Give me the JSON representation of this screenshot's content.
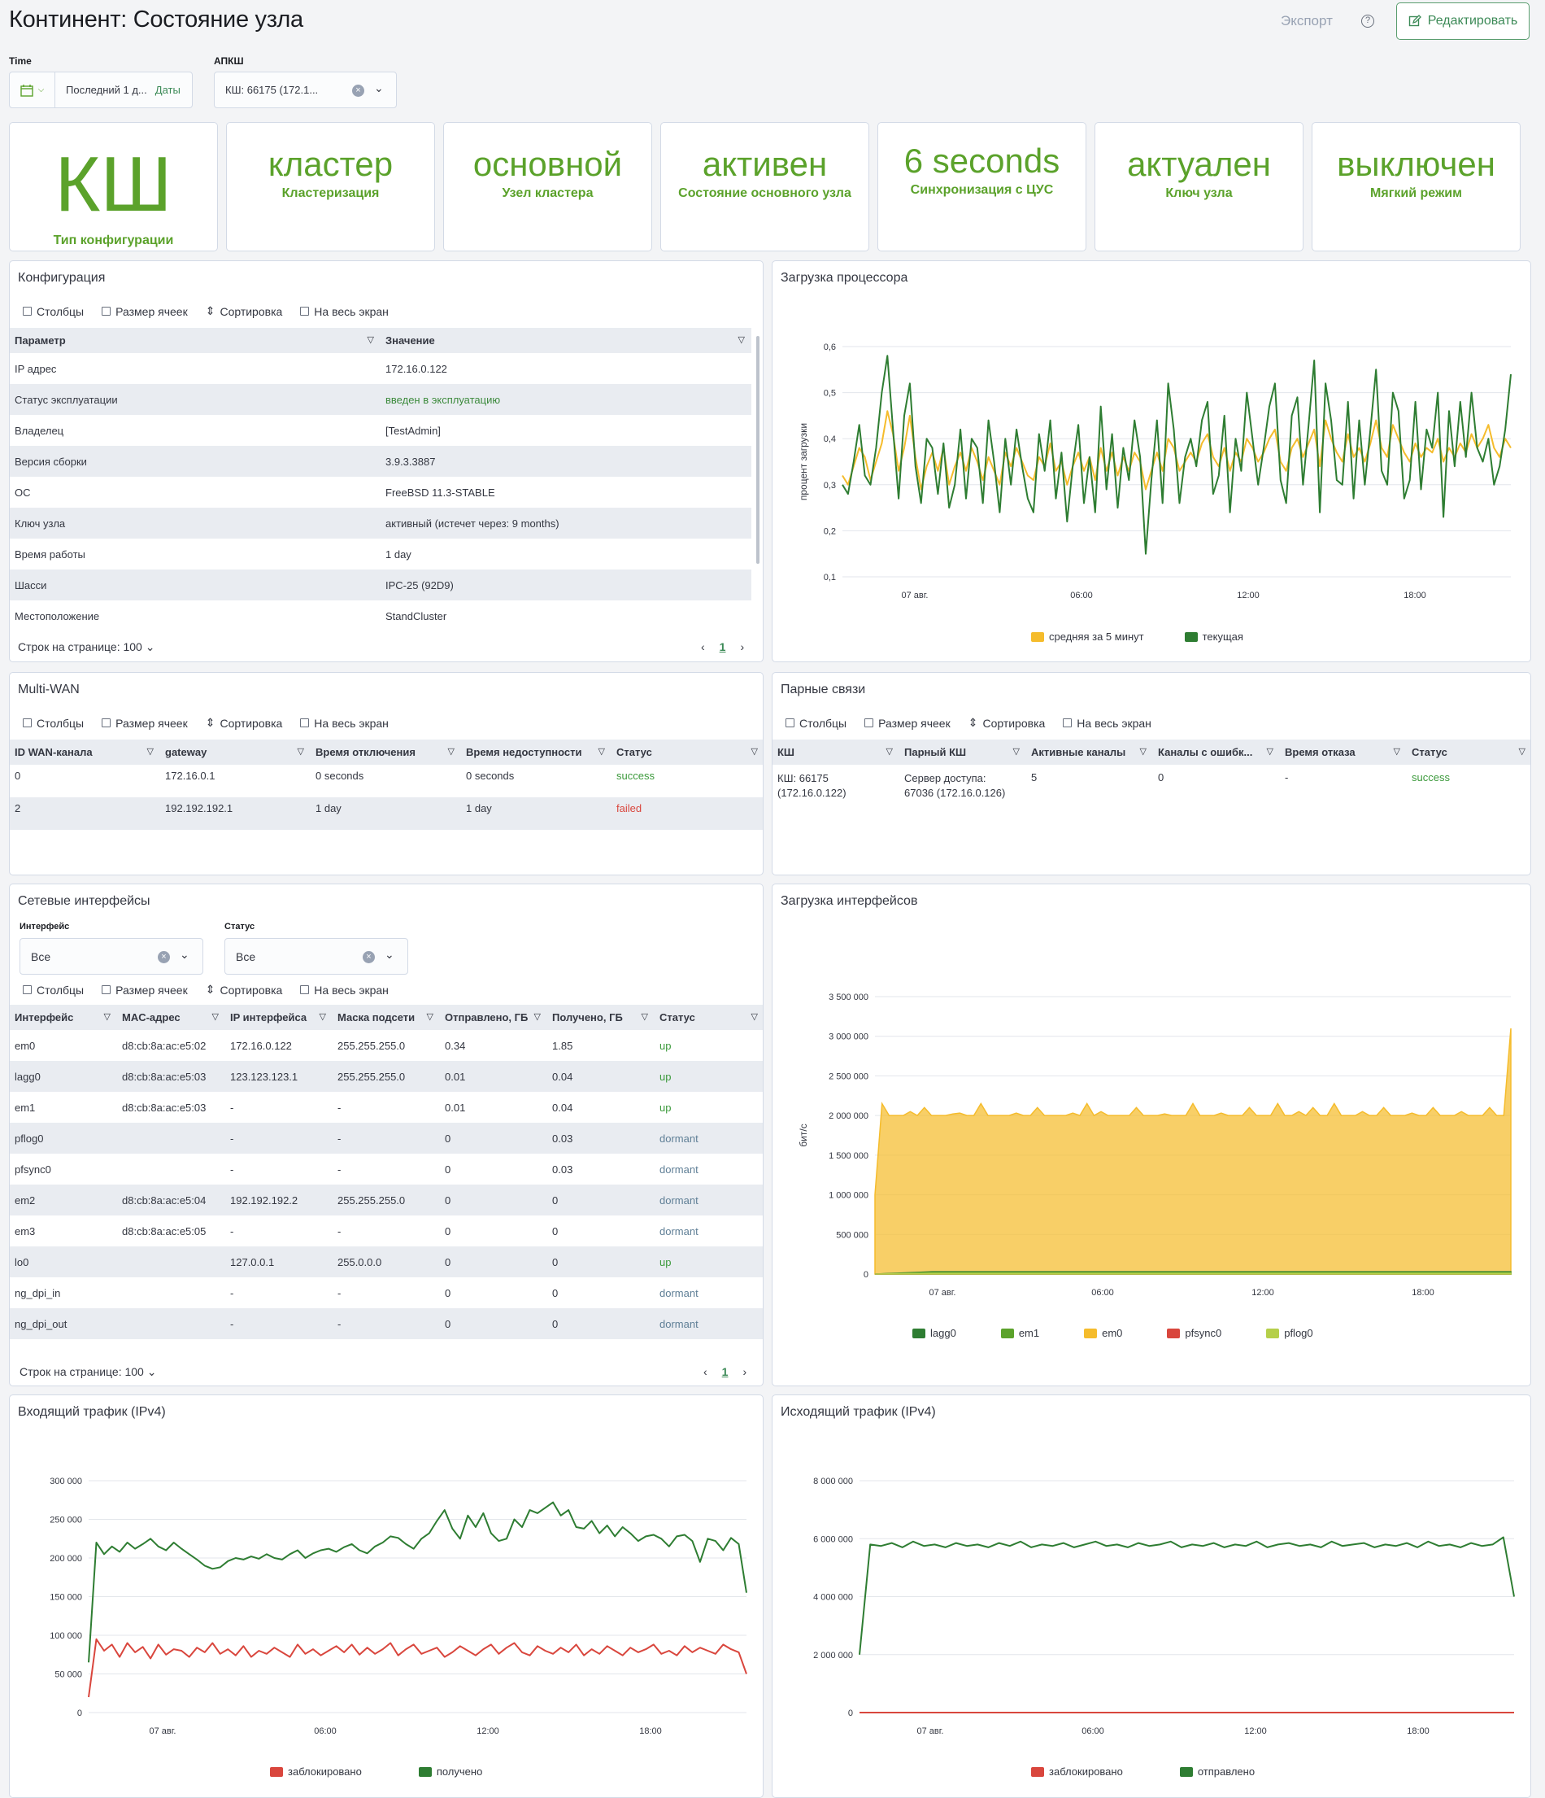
{
  "header": {
    "title": "Континент: Состояние узла",
    "export": "Экспорт",
    "help": "?",
    "edit": "Редактировать"
  },
  "filters": {
    "time_label": "Time",
    "time_value": "Последний 1 д...",
    "time_link": "Даты",
    "apksh_label": "АПКШ",
    "apksh_value": "КШ: 66175 (172.1..."
  },
  "metrics": [
    {
      "value": "КШ",
      "label": "Тип конфигурации"
    },
    {
      "value": "кластер",
      "label": "Кластеризация"
    },
    {
      "value": "основной",
      "label": "Узел кластера"
    },
    {
      "value": "активен",
      "label": "Состояние основного узла"
    },
    {
      "value": "6 seconds",
      "label": "Синхронизация с ЦУС"
    },
    {
      "value": "актуален",
      "label": "Ключ узла"
    },
    {
      "value": "выключен",
      "label": "Мягкий режим"
    }
  ],
  "toolbar": {
    "columns": "Столбцы",
    "cellsize": "Размер ячеек",
    "sort": "Сортировка",
    "fullscreen": "На весь экран"
  },
  "config": {
    "title": "Конфигурация",
    "col1": "Параметр",
    "col2": "Значение",
    "rows": [
      [
        "IP адрес",
        "172.16.0.122"
      ],
      [
        "Статус эксплуатации",
        "введен в эксплуатацию"
      ],
      [
        "Владелец",
        "[TestAdmin]"
      ],
      [
        "Версия сборки",
        "3.9.3.3887"
      ],
      [
        "ОС",
        "FreeBSD 11.3-STABLE"
      ],
      [
        "Ключ узла",
        "активный (истечет через: 9 months)"
      ],
      [
        "Время работы",
        "1 day"
      ],
      [
        "Шасси",
        "IPC-25 (92D9)"
      ],
      [
        "Местоположение",
        "StandCluster"
      ]
    ],
    "rows_per_page": "Строк на странице: 100",
    "page": "1"
  },
  "cpu": {
    "title": "Загрузка процессора",
    "ylabel": "процент загрузки",
    "legend": [
      "средняя за 5 минут",
      "текущая"
    ],
    "colors": [
      "#f5bc2c",
      "#2e7d32"
    ]
  },
  "multiwan": {
    "title": "Multi-WAN",
    "cols": [
      "ID WAN-канала",
      "gateway",
      "Время отключения",
      "Время недоступности",
      "Статус"
    ],
    "rows": [
      [
        "0",
        "172.16.0.1",
        "0 seconds",
        "0 seconds",
        "success"
      ],
      [
        "2",
        "192.192.192.1",
        "1 day",
        "1 day",
        "failed"
      ]
    ]
  },
  "pairs": {
    "title": "Парные связи",
    "cols": [
      "КШ",
      "Парный КШ",
      "Активные каналы",
      "Каналы с ошибк...",
      "Время отказа",
      "Статус"
    ],
    "row": {
      "ksh1": "КШ: 66175",
      "ksh2": "(172.16.0.122)",
      "pair1": "Сервер доступа:",
      "pair2": "67036 (172.16.0.126)",
      "active": "5",
      "errors": "0",
      "fail": "-",
      "status": "success"
    }
  },
  "netif": {
    "title": "Сетевые интерфейсы",
    "f_iface_label": "Интерфейс",
    "f_iface": "Все",
    "f_status_label": "Статус",
    "f_status": "Все",
    "cols": [
      "Интерфейс",
      "MAC-адрес",
      "IP интерфейса",
      "Маска подсети",
      "Отправлено, ГБ",
      "Получено, ГБ",
      "Статус"
    ],
    "rows": [
      [
        "em0",
        "d8:cb:8a:ac:e5:02",
        "172.16.0.122",
        "255.255.255.0",
        "0.34",
        "1.85",
        "up"
      ],
      [
        "lagg0",
        "d8:cb:8a:ac:e5:03",
        "123.123.123.1",
        "255.255.255.0",
        "0.01",
        "0.04",
        "up"
      ],
      [
        "em1",
        "d8:cb:8a:ac:e5:03",
        "-",
        "-",
        "0.01",
        "0.04",
        "up"
      ],
      [
        "pflog0",
        "",
        "-",
        "-",
        "0",
        "0.03",
        "dormant"
      ],
      [
        "pfsync0",
        "",
        "-",
        "-",
        "0",
        "0.03",
        "dormant"
      ],
      [
        "em2",
        "d8:cb:8a:ac:e5:04",
        "192.192.192.2",
        "255.255.255.0",
        "0",
        "0",
        "dormant"
      ],
      [
        "em3",
        "d8:cb:8a:ac:e5:05",
        "-",
        "-",
        "0",
        "0",
        "dormant"
      ],
      [
        "lo0",
        "",
        "127.0.0.1",
        "255.0.0.0",
        "0",
        "0",
        "up"
      ],
      [
        "ng_dpi_in",
        "",
        "-",
        "-",
        "0",
        "0",
        "dormant"
      ],
      [
        "ng_dpi_out",
        "",
        "-",
        "-",
        "0",
        "0",
        "dormant"
      ]
    ],
    "rows_per_page": "Строк на странице: 100",
    "page": "1"
  },
  "ifload": {
    "title": "Загрузка интерфейсов",
    "ylabel": "бит/с",
    "legend": [
      "lagg0",
      "em1",
      "em0",
      "pfsync0",
      "pflog0"
    ],
    "colors": [
      "#2e7d32",
      "#5ba22b",
      "#f5bc2c",
      "#d9463d",
      "#b5cf4a"
    ]
  },
  "inbound": {
    "title": "Входящий трафик (IPv4)",
    "legend": [
      "заблокировано",
      "получено"
    ],
    "colors": [
      "#d9463d",
      "#2e7d32"
    ]
  },
  "outbound": {
    "title": "Исходящий трафик (IPv4)",
    "legend": [
      "заблокировано",
      "отправлено"
    ],
    "colors": [
      "#d9463d",
      "#2e7d32"
    ]
  },
  "chart_data": [
    {
      "type": "line",
      "title": "Загрузка процессора",
      "ylabel": "процент загрузки",
      "ylim": [
        0.1,
        0.6
      ],
      "yticks": [
        "0,1",
        "0,2",
        "0,3",
        "0,4",
        "0,5",
        "0,6"
      ],
      "xticks": [
        "07 авг.",
        "06:00",
        "12:00",
        "18:00"
      ],
      "series": [
        {
          "name": "средняя за 5 минут",
          "values": [
            0.32,
            0.3,
            0.34,
            0.38,
            0.36,
            0.31,
            0.35,
            0.39,
            0.46,
            0.41,
            0.33,
            0.38,
            0.45,
            0.36,
            0.29,
            0.34,
            0.37,
            0.33,
            0.38,
            0.3,
            0.34,
            0.37,
            0.33,
            0.38,
            0.35,
            0.31,
            0.36,
            0.33,
            0.3,
            0.37,
            0.34,
            0.38,
            0.35,
            0.32,
            0.31,
            0.36,
            0.34,
            0.39,
            0.33,
            0.35,
            0.3,
            0.34,
            0.37,
            0.33,
            0.36,
            0.31,
            0.38,
            0.33,
            0.37,
            0.32,
            0.36,
            0.33,
            0.37,
            0.35,
            0.29,
            0.33,
            0.37,
            0.33,
            0.4,
            0.38,
            0.33,
            0.35,
            0.37,
            0.35,
            0.39,
            0.41,
            0.36,
            0.34,
            0.38,
            0.33,
            0.37,
            0.35,
            0.4,
            0.38,
            0.35,
            0.37,
            0.4,
            0.42,
            0.35,
            0.33,
            0.38,
            0.4,
            0.36,
            0.39,
            0.42,
            0.34,
            0.44,
            0.4,
            0.37,
            0.35,
            0.41,
            0.36,
            0.38,
            0.35,
            0.39,
            0.44,
            0.38,
            0.36,
            0.43,
            0.4,
            0.37,
            0.35,
            0.39,
            0.36,
            0.38,
            0.37,
            0.4,
            0.35,
            0.38,
            0.36,
            0.39,
            0.37,
            0.41,
            0.38,
            0.4,
            0.43,
            0.38,
            0.36,
            0.4,
            0.38
          ]
        },
        {
          "name": "текущая",
          "values": [
            0.3,
            0.28,
            0.35,
            0.43,
            0.32,
            0.3,
            0.38,
            0.5,
            0.58,
            0.42,
            0.27,
            0.45,
            0.52,
            0.34,
            0.26,
            0.4,
            0.38,
            0.28,
            0.39,
            0.25,
            0.3,
            0.42,
            0.27,
            0.4,
            0.38,
            0.26,
            0.44,
            0.35,
            0.24,
            0.4,
            0.3,
            0.42,
            0.34,
            0.27,
            0.24,
            0.41,
            0.33,
            0.44,
            0.27,
            0.37,
            0.22,
            0.34,
            0.43,
            0.26,
            0.36,
            0.24,
            0.47,
            0.29,
            0.41,
            0.25,
            0.38,
            0.31,
            0.44,
            0.36,
            0.15,
            0.31,
            0.44,
            0.26,
            0.52,
            0.42,
            0.26,
            0.36,
            0.4,
            0.34,
            0.44,
            0.48,
            0.28,
            0.32,
            0.45,
            0.24,
            0.4,
            0.33,
            0.5,
            0.4,
            0.3,
            0.38,
            0.47,
            0.52,
            0.31,
            0.26,
            0.45,
            0.49,
            0.3,
            0.43,
            0.57,
            0.24,
            0.52,
            0.44,
            0.31,
            0.3,
            0.48,
            0.27,
            0.44,
            0.3,
            0.42,
            0.55,
            0.33,
            0.3,
            0.5,
            0.46,
            0.27,
            0.31,
            0.48,
            0.29,
            0.42,
            0.38,
            0.5,
            0.23,
            0.46,
            0.34,
            0.48,
            0.36,
            0.5,
            0.38,
            0.35,
            0.4,
            0.3,
            0.34,
            0.42,
            0.54
          ]
        }
      ]
    },
    {
      "type": "area",
      "title": "Загрузка интерфейсов",
      "ylabel": "бит/с",
      "ylim": [
        0,
        3500000
      ],
      "yticks": [
        "0",
        "500 000",
        "1 000 000",
        "1 500 000",
        "2 000 000",
        "2 500 000",
        "3 000 000",
        "3 500 000"
      ],
      "xticks": [
        "07 авг.",
        "06:00",
        "12:00",
        "18:00"
      ],
      "series": [
        {
          "name": "em0",
          "values": [
            1000000,
            2150000,
            2000000,
            2000000,
            2000000,
            2050000,
            2000000,
            2100000,
            2000000,
            2000000,
            2000000,
            2020000,
            2030000,
            2000000,
            2000000,
            2150000,
            2000000,
            2000000,
            2000000,
            2000000,
            2030000,
            2000000,
            2000000,
            2100000,
            2000000,
            2000000,
            2000000,
            2000000,
            2030000,
            2000000,
            2150000,
            2000000,
            2050000,
            2000000,
            2000000,
            2000000,
            2000000,
            2100000,
            2000000,
            2000000,
            2000000,
            2020000,
            2000000,
            2000000,
            2000000,
            2150000,
            2000000,
            2000000,
            2000000,
            2030000,
            2000000,
            2000000,
            2000000,
            2100000,
            2000000,
            2000000,
            2000000,
            2150000,
            2000000,
            2000000,
            2050000,
            2000000,
            2100000,
            2000000,
            2000000,
            2150000,
            2000000,
            2000000,
            2000000,
            2050000,
            2000000,
            2000000,
            2100000,
            2000000,
            2000000,
            2000000,
            2030000,
            2000000,
            2000000,
            2100000,
            2000000,
            2000000,
            2000000,
            2050000,
            2000000,
            2000000,
            2000000,
            2100000,
            2000000,
            2000000,
            3100000
          ]
        },
        {
          "name": "lagg0",
          "values": [
            0,
            30000,
            30000,
            30000,
            30000,
            30000,
            30000,
            30000,
            30000,
            30000,
            30000,
            30000
          ]
        },
        {
          "name": "em1",
          "values": [
            0,
            20000,
            20000,
            20000,
            20000,
            20000,
            20000,
            20000,
            20000,
            20000,
            20000,
            20000
          ]
        },
        {
          "name": "pfsync0",
          "values": [
            0,
            0,
            0,
            0,
            0,
            0,
            0,
            0,
            0,
            0,
            0,
            0
          ]
        },
        {
          "name": "pflog0",
          "values": [
            0,
            10000,
            10000,
            10000,
            10000,
            10000,
            10000,
            10000,
            10000,
            10000,
            10000,
            10000
          ]
        }
      ]
    },
    {
      "type": "line",
      "title": "Входящий трафик (IPv4)",
      "ylim": [
        0,
        300000
      ],
      "yticks": [
        "0",
        "50 000",
        "100 000",
        "150 000",
        "200 000",
        "250 000",
        "300 000"
      ],
      "xticks": [
        "07 авг.",
        "06:00",
        "12:00",
        "18:00"
      ],
      "series": [
        {
          "name": "получено",
          "values": [
            65000,
            220000,
            205000,
            215000,
            208000,
            220000,
            212000,
            218000,
            225000,
            215000,
            210000,
            220000,
            212000,
            205000,
            198000,
            190000,
            186000,
            188000,
            196000,
            200000,
            198000,
            202000,
            199000,
            205000,
            200000,
            198000,
            205000,
            210000,
            200000,
            206000,
            210000,
            212000,
            208000,
            214000,
            218000,
            210000,
            206000,
            215000,
            220000,
            228000,
            226000,
            218000,
            212000,
            225000,
            232000,
            248000,
            262000,
            238000,
            225000,
            255000,
            240000,
            258000,
            232000,
            222000,
            225000,
            250000,
            240000,
            262000,
            258000,
            265000,
            272000,
            255000,
            262000,
            240000,
            238000,
            248000,
            232000,
            242000,
            228000,
            240000,
            232000,
            222000,
            228000,
            230000,
            225000,
            215000,
            228000,
            230000,
            222000,
            195000,
            225000,
            222000,
            210000,
            226000,
            218000,
            155000
          ]
        },
        {
          "name": "заблокировано",
          "values": [
            20000,
            95000,
            80000,
            88000,
            72000,
            90000,
            78000,
            85000,
            70000,
            88000,
            75000,
            82000,
            80000,
            72000,
            84000,
            78000,
            90000,
            76000,
            82000,
            74000,
            86000,
            72000,
            80000,
            76000,
            84000,
            78000,
            72000,
            88000,
            76000,
            82000,
            74000,
            80000,
            86000,
            78000,
            88000,
            75000,
            84000,
            76000,
            82000,
            90000,
            74000,
            82000,
            88000,
            76000,
            80000,
            84000,
            72000,
            78000,
            86000,
            80000,
            74000,
            82000,
            88000,
            76000,
            84000,
            90000,
            78000,
            74000,
            86000,
            80000,
            76000,
            84000,
            78000,
            88000,
            74000,
            82000,
            76000,
            86000,
            80000,
            74000,
            84000,
            78000,
            82000,
            88000,
            76000,
            80000,
            74000,
            86000,
            78000,
            84000,
            80000,
            76000,
            88000,
            82000,
            78000,
            50000
          ]
        }
      ]
    },
    {
      "type": "line",
      "title": "Исходящий трафик (IPv4)",
      "ylim": [
        0,
        8000000
      ],
      "yticks": [
        "0",
        "2 000 000",
        "4 000 000",
        "6 000 000",
        "8 000 000"
      ],
      "xticks": [
        "07 авг.",
        "06:00",
        "12:00",
        "18:00"
      ],
      "series": [
        {
          "name": "отправлено",
          "values": [
            2000000,
            5800000,
            5750000,
            5850000,
            5700000,
            5900000,
            5750000,
            5800000,
            5700000,
            5850000,
            5750000,
            5800000,
            5700000,
            5850000,
            5750000,
            5900000,
            5700000,
            5800000,
            5750000,
            5850000,
            5700000,
            5800000,
            5900000,
            5750000,
            5800000,
            5700000,
            5850000,
            5750000,
            5800000,
            5900000,
            5700000,
            5800000,
            5750000,
            5850000,
            5700000,
            5800000,
            5750000,
            5900000,
            5700000,
            5800000,
            5850000,
            5750000,
            5800000,
            5700000,
            5900000,
            5750000,
            5800000,
            5850000,
            5700000,
            5800000,
            5750000,
            5850000,
            5700000,
            5900000,
            5750000,
            5800000,
            5700000,
            5850000,
            5750000,
            5800000,
            6050000,
            4000000
          ]
        },
        {
          "name": "заблокировано",
          "values": [
            0,
            0,
            0,
            0,
            0,
            0,
            0,
            0,
            0,
            0,
            0,
            0
          ]
        }
      ]
    }
  ]
}
